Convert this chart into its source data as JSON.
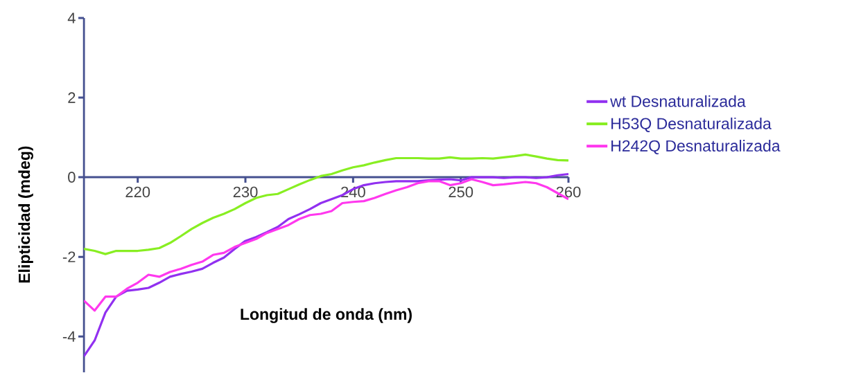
{
  "chart_data": {
    "type": "line",
    "xlabel": "Longitud de onda (nm)",
    "ylabel": "Elipticidad (mdeg)",
    "x": [
      215,
      216,
      217,
      218,
      219,
      220,
      221,
      222,
      223,
      224,
      225,
      226,
      227,
      228,
      229,
      230,
      231,
      232,
      233,
      234,
      235,
      236,
      237,
      238,
      239,
      240,
      241,
      242,
      243,
      244,
      245,
      246,
      247,
      248,
      249,
      250,
      251,
      252,
      253,
      254,
      255,
      256,
      257,
      258,
      259,
      260
    ],
    "series": [
      {
        "name": "wt Desnaturalizada",
        "color": "#9130f0",
        "values": [
          -4.5,
          -4.1,
          -3.4,
          -3.0,
          -2.85,
          -2.82,
          -2.78,
          -2.65,
          -2.5,
          -2.43,
          -2.37,
          -2.3,
          -2.15,
          -2.02,
          -1.8,
          -1.6,
          -1.5,
          -1.38,
          -1.25,
          -1.05,
          -0.93,
          -0.8,
          -0.65,
          -0.55,
          -0.45,
          -0.3,
          -0.2,
          -0.15,
          -0.12,
          -0.1,
          -0.1,
          -0.1,
          -0.08,
          -0.06,
          -0.05,
          -0.08,
          0.0,
          0.0,
          0.0,
          -0.02,
          0.0,
          0.0,
          -0.02,
          0.0,
          0.05,
          0.08
        ]
      },
      {
        "name": "H53Q Desnaturalizada",
        "color": "#88ee22",
        "values": [
          -1.8,
          -1.85,
          -1.93,
          -1.85,
          -1.85,
          -1.85,
          -1.82,
          -1.78,
          -1.65,
          -1.48,
          -1.3,
          -1.15,
          -1.02,
          -0.92,
          -0.8,
          -0.65,
          -0.52,
          -0.45,
          -0.42,
          -0.3,
          -0.18,
          -0.07,
          0.03,
          0.08,
          0.17,
          0.25,
          0.3,
          0.37,
          0.43,
          0.48,
          0.48,
          0.48,
          0.47,
          0.47,
          0.5,
          0.47,
          0.47,
          0.48,
          0.47,
          0.5,
          0.53,
          0.57,
          0.52,
          0.47,
          0.43,
          0.42
        ]
      },
      {
        "name": "H242Q Desnaturalizada",
        "color": "#ff38ee",
        "values": [
          -3.1,
          -3.35,
          -3.0,
          -3.0,
          -2.8,
          -2.65,
          -2.45,
          -2.5,
          -2.38,
          -2.3,
          -2.2,
          -2.12,
          -1.95,
          -1.9,
          -1.75,
          -1.65,
          -1.55,
          -1.4,
          -1.3,
          -1.2,
          -1.05,
          -0.95,
          -0.92,
          -0.85,
          -0.65,
          -0.62,
          -0.6,
          -0.52,
          -0.42,
          -0.33,
          -0.25,
          -0.15,
          -0.1,
          -0.1,
          -0.2,
          -0.15,
          -0.05,
          -0.12,
          -0.2,
          -0.18,
          -0.15,
          -0.12,
          -0.15,
          -0.25,
          -0.4,
          -0.55
        ]
      }
    ],
    "xlim": [
      215,
      260
    ],
    "ylim": [
      -4.9,
      4
    ],
    "xticks": [
      220,
      230,
      240,
      250,
      260
    ],
    "yticks": [
      -4,
      -2,
      0,
      2,
      4
    ],
    "grid": false,
    "legend": "right",
    "marker": "none",
    "line_style": "solid"
  }
}
